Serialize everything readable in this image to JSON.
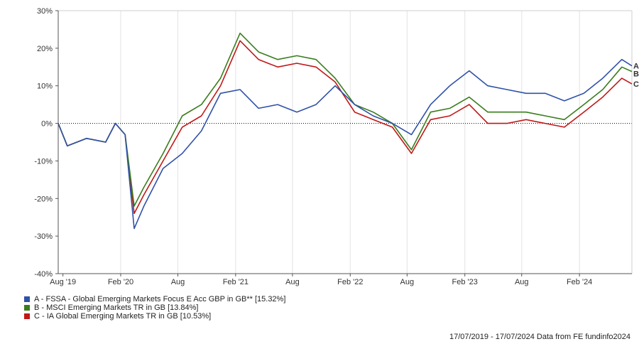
{
  "chart_data": {
    "type": "line",
    "title": "",
    "xlabel": "",
    "ylabel": "",
    "ylim": [
      -40,
      30
    ],
    "yticks": [
      "30%",
      "20%",
      "10%",
      "0%",
      "-10%",
      "-20%",
      "-30%",
      "-40%"
    ],
    "xticks": [
      "Aug '19",
      "Feb '20",
      "Aug",
      "Feb '21",
      "Aug",
      "Feb '22",
      "Aug",
      "Feb '23",
      "Aug",
      "Feb '24"
    ],
    "x": [
      "2019-07",
      "2019-08",
      "2019-10",
      "2019-12",
      "2020-01",
      "2020-02",
      "2020-03",
      "2020-04",
      "2020-06",
      "2020-08",
      "2020-10",
      "2020-12",
      "2021-02",
      "2021-04",
      "2021-06",
      "2021-08",
      "2021-10",
      "2021-12",
      "2022-02",
      "2022-04",
      "2022-06",
      "2022-08",
      "2022-10",
      "2022-12",
      "2023-02",
      "2023-04",
      "2023-06",
      "2023-08",
      "2023-10",
      "2023-12",
      "2024-02",
      "2024-04",
      "2024-06",
      "2024-07"
    ],
    "series": [
      {
        "name": "A - FSSA - Global Emerging Markets Focus E Acc GBP in GB** [15.32%]",
        "label": "A",
        "color": "#2f52a8",
        "values": [
          0,
          -6,
          -4,
          -5,
          0,
          -3,
          -28,
          -22,
          -12,
          -8,
          -2,
          8,
          9,
          4,
          5,
          3,
          5,
          10,
          5,
          2,
          0,
          -3,
          5,
          10,
          14,
          10,
          9,
          8,
          8,
          6,
          8,
          12,
          17,
          15.3
        ]
      },
      {
        "name": "B - MSCI Emerging Markets TR in GB [13.84%]",
        "label": "B",
        "color": "#3a7d1e",
        "values": [
          0,
          -6,
          -4,
          -5,
          0,
          -3,
          -22,
          -17,
          -8,
          2,
          5,
          12,
          24,
          19,
          17,
          18,
          17,
          12,
          5,
          3,
          0,
          -7,
          3,
          4,
          7,
          3,
          3,
          3,
          2,
          1,
          5,
          9,
          15,
          13.8
        ]
      },
      {
        "name": "C - IA Global Emerging Markets TR in GB [10.53%]",
        "label": "C",
        "color": "#c01818",
        "values": [
          0,
          -6,
          -4,
          -5,
          0,
          -3,
          -24,
          -19,
          -10,
          -1,
          2,
          10,
          22,
          17,
          15,
          16,
          15,
          11,
          3,
          1,
          -1,
          -8,
          1,
          2,
          5,
          0,
          0,
          1,
          0,
          -1,
          3,
          7,
          12,
          10.5
        ]
      }
    ],
    "grid": "vertical",
    "zero_line": "dotted",
    "legend": "bottom-left"
  },
  "footer": {
    "date_range": "17/07/2019 - 17/07/2024",
    "source": "Data from FE fundinfo2024"
  }
}
